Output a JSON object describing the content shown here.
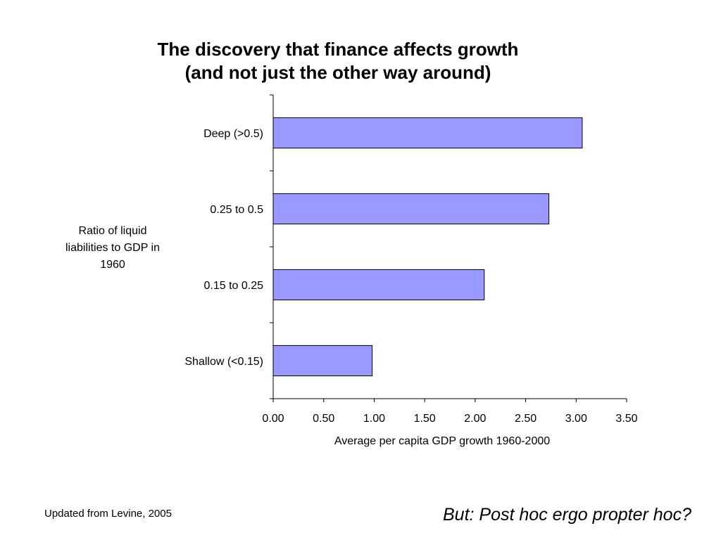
{
  "slide": {
    "title_line1": "The discovery that finance affects growth",
    "title_line2": "(and not just the other way around)",
    "source_note": "Updated from Levine, 2005",
    "caption": "But: Post hoc ergo propter hoc?"
  },
  "chart_data": {
    "type": "bar",
    "orientation": "horizontal",
    "title": "The discovery that finance affects growth (and not just the other way around)",
    "categories": [
      "Deep (>0.5)",
      "0.25 to 0.5",
      "0.15 to 0.25",
      "Shallow (<0.15)"
    ],
    "values": [
      3.06,
      2.73,
      2.09,
      0.98
    ],
    "xlabel": "Average per capita GDP growth 1960-2000",
    "ylabel": "Ratio of liquid liabilities to GDP in 1960",
    "ylabel_lines": [
      "Ratio of liquid",
      "liabilities to GDP in",
      "1960"
    ],
    "xlim": [
      0,
      3.5
    ],
    "x_ticks": [
      "0.00",
      "0.50",
      "1.00",
      "1.50",
      "2.00",
      "2.50",
      "3.00",
      "3.50"
    ],
    "grid": false,
    "bar_color": "#9999ff",
    "bar_edge_color": "#000000"
  }
}
